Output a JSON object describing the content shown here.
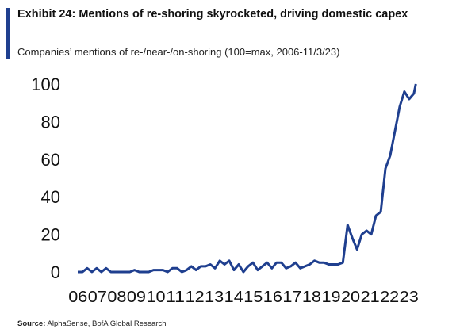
{
  "header": {
    "title": "Exhibit 24: Mentions of re-shoring skyrocketed, driving domestic capex",
    "subtitle": "Companies’ mentions of re-/near-/on-shoring (100=max, 2006-11/3/23)",
    "accent_color": "#1f3f8f"
  },
  "footer": {
    "source_label": "Source:",
    "source_text": "AlphaSense, BofA Global Research"
  },
  "chart_data": {
    "type": "line",
    "title": "",
    "xlabel": "",
    "ylabel": "",
    "ylim": [
      0,
      100
    ],
    "yticks": [
      0,
      20,
      40,
      60,
      80,
      100
    ],
    "xlim": [
      2006,
      2024.3
    ],
    "xtick_labels": [
      "06",
      "07",
      "08",
      "09",
      "10",
      "11",
      "12",
      "13",
      "14",
      "15",
      "16",
      "17",
      "18",
      "19",
      "20",
      "21",
      "22",
      "23"
    ],
    "grid": false,
    "legend": "none",
    "line_color": "#1f3f8f",
    "series": [
      {
        "x": [
          2006.0,
          2006.25,
          2006.5,
          2006.75,
          2007.0,
          2007.25,
          2007.5,
          2007.75,
          2008.0,
          2008.25,
          2008.5,
          2008.75,
          2009.0,
          2009.25,
          2009.5,
          2009.75,
          2010.0,
          2010.25,
          2010.5,
          2010.75,
          2011.0,
          2011.25,
          2011.5,
          2011.75,
          2012.0,
          2012.25,
          2012.5,
          2012.75,
          2013.0,
          2013.25,
          2013.5,
          2013.75,
          2014.0,
          2014.25,
          2014.5,
          2014.75,
          2015.0,
          2015.25,
          2015.5,
          2015.75,
          2016.0,
          2016.25,
          2016.5,
          2016.75,
          2017.0,
          2017.25,
          2017.5,
          2017.75,
          2018.0,
          2018.25,
          2018.5,
          2018.75,
          2019.0,
          2019.25,
          2019.5,
          2019.75,
          2020.0,
          2020.25,
          2020.5,
          2020.75,
          2021.0,
          2021.25,
          2021.5,
          2021.75,
          2022.0,
          2022.25,
          2022.5,
          2022.75,
          2023.0,
          2023.25,
          2023.5,
          2023.75,
          2023.85
        ],
        "values": [
          0,
          0,
          2,
          0,
          2,
          0,
          2,
          0,
          0,
          0,
          0,
          0,
          1,
          0,
          0,
          0,
          1,
          1,
          1,
          0,
          2,
          2,
          0,
          1,
          3,
          1,
          3,
          3,
          4,
          2,
          6,
          4,
          6,
          1,
          4,
          0,
          3,
          5,
          1,
          3,
          5,
          2,
          5,
          5,
          2,
          3,
          5,
          2,
          3,
          4,
          6,
          5,
          5,
          4,
          4,
          4,
          5,
          25,
          18,
          12,
          20,
          22,
          20,
          30,
          32,
          55,
          62,
          75,
          88,
          96,
          92,
          95,
          100
        ]
      }
    ]
  }
}
